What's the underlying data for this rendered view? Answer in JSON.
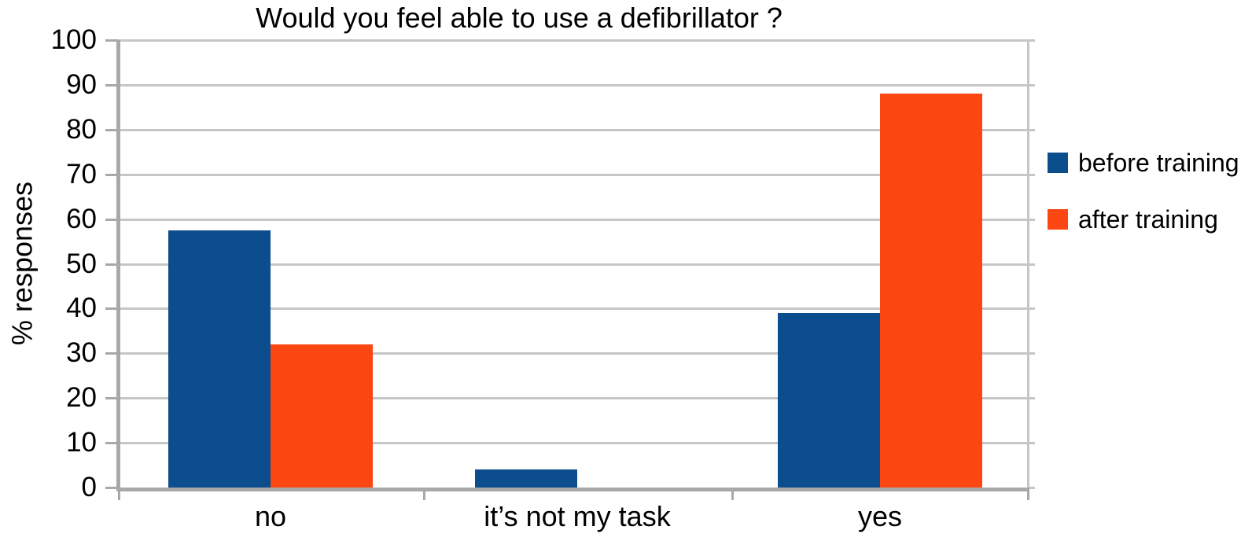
{
  "chart_data": {
    "type": "bar",
    "title": "Would you feel able to use a defibrillator ?",
    "ylabel": "% responses",
    "xlabel": "",
    "categories": [
      "no",
      "it’s not my task",
      "yes"
    ],
    "series": [
      {
        "name": "before training",
        "color": "#0C4D8D",
        "values": [
          57.5,
          4,
          39
        ]
      },
      {
        "name": "after training",
        "color": "#FC4713",
        "values": [
          32,
          0,
          88
        ]
      }
    ],
    "ylim": [
      0,
      100
    ],
    "yticks": [
      0,
      10,
      20,
      30,
      40,
      50,
      60,
      70,
      80,
      90,
      100
    ],
    "grid": true,
    "legend_position": "right",
    "colors": {
      "gridline": "#c6c6c6",
      "axis": "#a8a8a8",
      "background": "#ffffff",
      "text": "#000000"
    }
  }
}
